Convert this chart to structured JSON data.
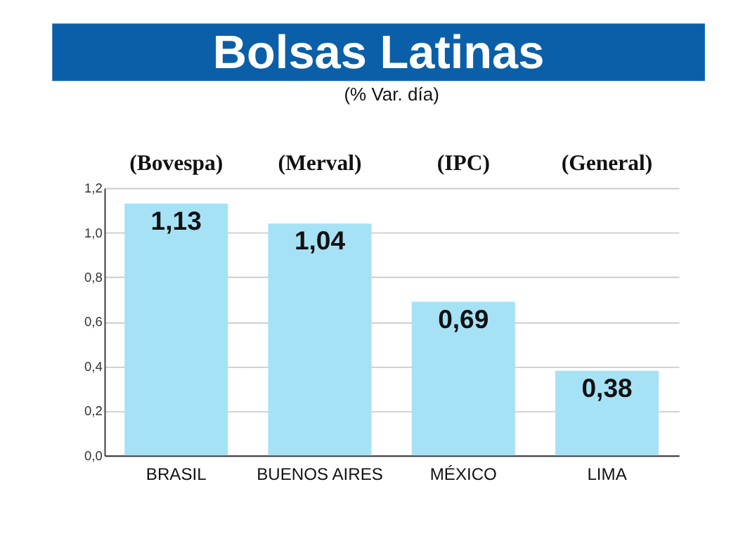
{
  "chart_data": {
    "type": "bar",
    "title": "Bolsas Latinas",
    "subtitle": "(% Var. día)",
    "categories": [
      "BRASIL",
      "BUENOS AIRES",
      "MÉXICO",
      "LIMA"
    ],
    "values": [
      1.13,
      1.04,
      0.69,
      0.38
    ],
    "value_labels": [
      "1,13",
      "1,04",
      "0,69",
      "0,38"
    ],
    "color": "#a6e2f6",
    "ylim": [
      0,
      1.2
    ],
    "yticks": [
      {
        "value": 0,
        "label": "0,0"
      },
      {
        "value": 0.2,
        "label": "0,2"
      },
      {
        "value": 0.4,
        "label": "0,4"
      },
      {
        "value": 0.6,
        "label": "0,6"
      },
      {
        "value": 0.8,
        "label": "0,8"
      },
      {
        "value": 1.0,
        "label": "1,0"
      },
      {
        "value": 1.2,
        "label": "1,2"
      }
    ],
    "grid": "y",
    "annotations": [
      "(Bovespa)",
      "(Merval)",
      "(IPC)",
      "(General)"
    ]
  }
}
